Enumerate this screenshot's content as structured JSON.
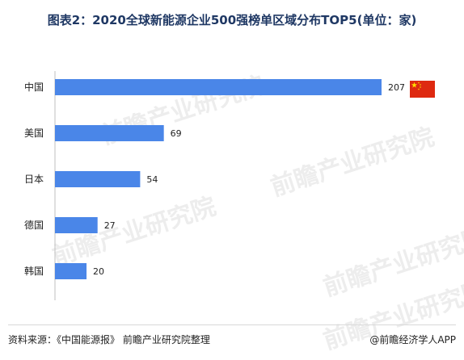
{
  "title": "图表2：2020全球新能源企业500强榜单区域分布TOP5(单位：家)",
  "watermark": "前瞻产业研究院",
  "footer": {
    "source": "资料来源：《中国能源报》 前瞻产业研究院整理",
    "credit": "@前瞻经济学人APP"
  },
  "colors": {
    "bar": "#4a86e8",
    "axis": "#bfbfbf",
    "title": "#1f3864",
    "flag": "#de2910",
    "star": "#ffde00"
  },
  "chart_data": {
    "type": "bar",
    "orientation": "horizontal",
    "categories": [
      "中国",
      "美国",
      "日本",
      "德国",
      "韩国"
    ],
    "values": [
      207,
      69,
      54,
      27,
      20
    ],
    "xlim": [
      0,
      207
    ],
    "data_labels": true,
    "grid": false
  }
}
